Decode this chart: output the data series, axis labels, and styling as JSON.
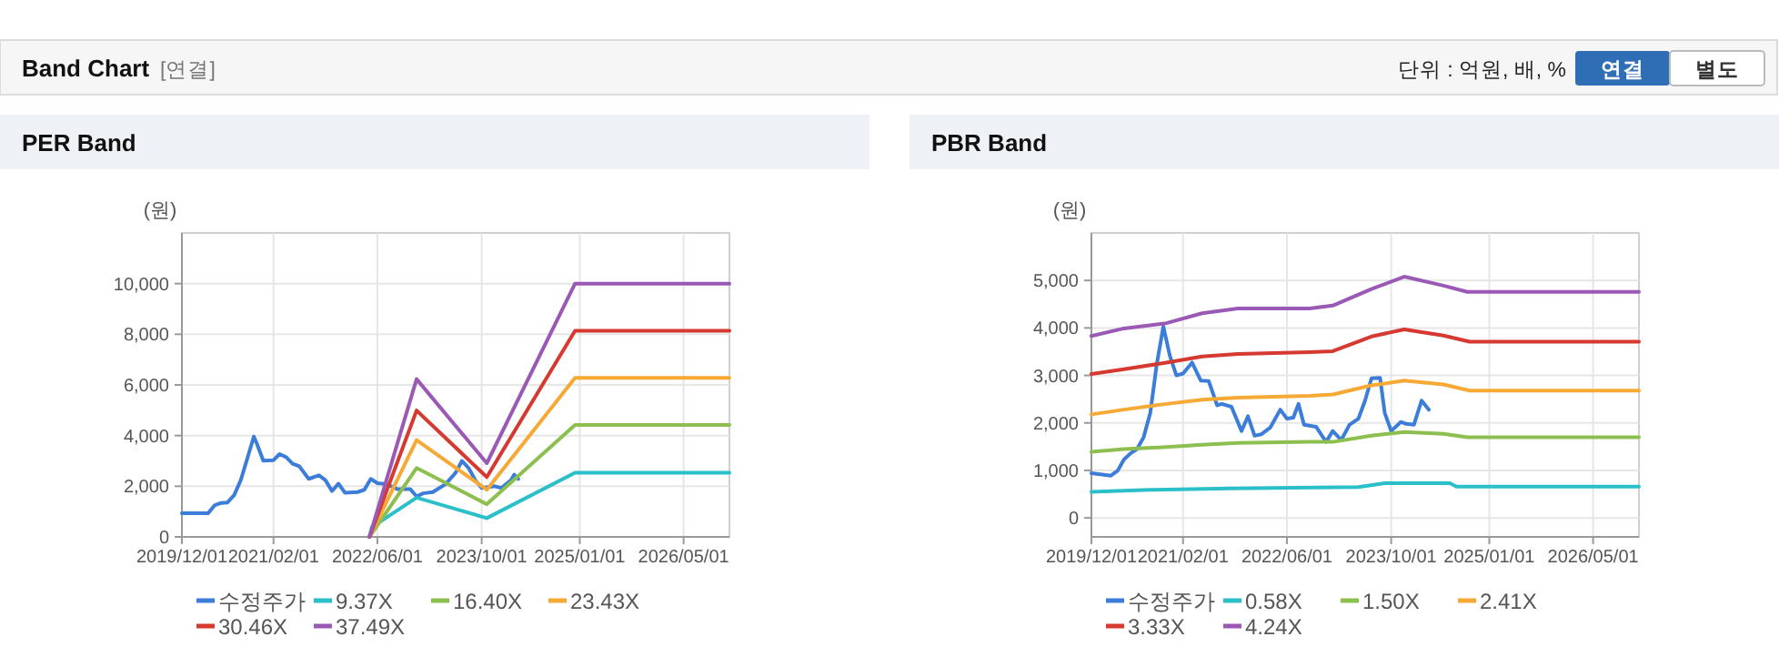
{
  "chart_data": [
    {
      "type": "other",
      "title": "Band Chart",
      "annotations": [
        "[연결]",
        "단위 : 억원, 배, %",
        "연결",
        "별도"
      ]
    },
    {
      "type": "line",
      "title": "PER Band",
      "ylabel": "(원)",
      "xlim": [
        "2019-12-01",
        "2026-12-01"
      ],
      "xticks": [
        {
          "value": "2019-12-01",
          "label": "2019/12/01"
        },
        {
          "value": "2021-02-01",
          "label": "2021/02/01"
        },
        {
          "value": "2022-06-01",
          "label": "2022/06/01"
        },
        {
          "value": "2023-10-01",
          "label": "2023/10/01"
        },
        {
          "value": "2025-01-01",
          "label": "2025/01/01"
        },
        {
          "value": "2026-05-01",
          "label": "2026/05/01"
        }
      ],
      "ylim": [
        0,
        12000
      ],
      "yticks": [
        0,
        {
          "value": 2000,
          "label": "2,000"
        },
        {
          "value": 4000,
          "label": "4,000"
        },
        {
          "value": 6000,
          "label": "6,000"
        },
        {
          "value": 8000,
          "label": "8,000"
        },
        {
          "value": 10000,
          "label": "10,000"
        }
      ],
      "grid": true,
      "legend": "bottom",
      "marker": "none",
      "line_style": "solid",
      "series": [
        {
          "name": "수정주가",
          "color": "#3b7dd8",
          "x": [
            "2019-12-01",
            "2020-04",
            "2020-05",
            "2020-06",
            "2020-07",
            "2020-08",
            "2020-09",
            "2020-10",
            "2020-11",
            "2020-11-15",
            "2020-12-15",
            "2021-02",
            "2021-03",
            "2021-04",
            "2021-05",
            "2021-06",
            "2021-07-15",
            "2021-09",
            "2021-10",
            "2021-11",
            "2021-12",
            "2022-01",
            "2022-03",
            "2022-04",
            "2022-05",
            "2022-06",
            "2022-07-15",
            "2022-09",
            "2022-11",
            "2022-12",
            "2023-01",
            "2023-02-15",
            "2023-04-15",
            "2023-06",
            "2023-07",
            "2023-08",
            "2023-09",
            "2023-10",
            "2023-12",
            "2024-01",
            "2024-02-15",
            "2024-03",
            "2024-03-20"
          ],
          "values": [
            930,
            930,
            1240,
            1340,
            1360,
            1650,
            2240,
            3080,
            3960,
            3680,
            3010,
            3030,
            3270,
            3150,
            2890,
            2790,
            2290,
            2430,
            2240,
            1810,
            2100,
            1740,
            1770,
            1860,
            2290,
            2120,
            2080,
            1890,
            1890,
            1600,
            1720,
            1770,
            2080,
            2530,
            3000,
            2720,
            2240,
            1930,
            2000,
            1930,
            2240,
            2460,
            2290
          ]
        },
        {
          "name": "9.37X",
          "color": "#2bbfc9",
          "x": [
            "2022-04-25",
            "2022-05-06",
            "2022-12-01",
            "2023-10-25",
            "2024-12-10",
            "2026-12-01"
          ],
          "values": [
            0,
            380,
            1550,
            740,
            2530,
            2530
          ]
        },
        {
          "name": "16.40X",
          "color": "#8cbf50",
          "x": [
            "2022-04-25",
            "2022-12-01",
            "2023-10-25",
            "2024-12-10",
            "2026-12-01"
          ],
          "values": [
            0,
            2720,
            1290,
            4420,
            4420
          ]
        },
        {
          "name": "23.43X",
          "color": "#f6a935",
          "x": [
            "2022-04-25",
            "2022-12-01",
            "2023-10-25",
            "2024-12-10",
            "2026-12-01"
          ],
          "values": [
            0,
            3820,
            1860,
            6280,
            6280
          ]
        },
        {
          "name": "30.46X",
          "color": "#d6392f",
          "x": [
            "2022-04-25",
            "2022-12-01",
            "2023-10-25",
            "2024-12-10",
            "2026-12-01"
          ],
          "values": [
            0,
            4990,
            2360,
            8140,
            8140
          ]
        },
        {
          "name": "37.49X",
          "color": "#9b59b6",
          "x": [
            "2022-04-25",
            "2022-12-01",
            "2023-10-25",
            "2024-12-10",
            "2026-12-01"
          ],
          "values": [
            0,
            6230,
            2910,
            10000,
            10000
          ]
        }
      ]
    },
    {
      "type": "line",
      "title": "PBR Band",
      "ylabel": "(원)",
      "xlim": [
        "2019-12-01",
        "2026-12-01"
      ],
      "xticks": [
        {
          "value": "2019-12-01",
          "label": "2019/12/01"
        },
        {
          "value": "2021-02-01",
          "label": "2021/02/01"
        },
        {
          "value": "2022-06-01",
          "label": "2022/06/01"
        },
        {
          "value": "2023-10-01",
          "label": "2023/10/01"
        },
        {
          "value": "2025-01-01",
          "label": "2025/01/01"
        },
        {
          "value": "2026-05-01",
          "label": "2026/05/01"
        }
      ],
      "ylim": [
        -400,
        6000
      ],
      "yticks": [
        0,
        {
          "value": 1000,
          "label": "1,000"
        },
        {
          "value": 2000,
          "label": "2,000"
        },
        {
          "value": 3000,
          "label": "3,000"
        },
        {
          "value": 4000,
          "label": "4,000"
        },
        {
          "value": 5000,
          "label": "5,000"
        }
      ],
      "grid": true,
      "legend": "bottom",
      "marker": "none",
      "line_style": "solid",
      "series": [
        {
          "name": "수정주가",
          "color": "#3b7dd8",
          "x": [
            "2019-12-01",
            "2020-03",
            "2020-04",
            "2020-05",
            "2020-06",
            "2020-07",
            "2020-08",
            "2020-09",
            "2020-10",
            "2020-11",
            "2020-12",
            "2021-01",
            "2021-02",
            "2021-03-15",
            "2021-04-25",
            "2021-06",
            "2021-07-10",
            "2021-08",
            "2021-09-15",
            "2021-11",
            "2021-12",
            "2022-01",
            "2022-02",
            "2022-03-15",
            "2022-05",
            "2022-06",
            "2022-07",
            "2022-07-25",
            "2022-08-20",
            "2022-10-15",
            "2022-12",
            "2023-01",
            "2023-02-10",
            "2023-03-20",
            "2023-05",
            "2023-06",
            "2023-07",
            "2023-08-10",
            "2023-09",
            "2023-10",
            "2023-11-15",
            "2023-12-10",
            "2024-01-15",
            "2024-02-20",
            "2024-03-25"
          ],
          "values": [
            940,
            890,
            990,
            1230,
            1360,
            1450,
            1700,
            2210,
            3230,
            4030,
            3420,
            3000,
            3040,
            3270,
            2890,
            2880,
            2370,
            2400,
            2340,
            1830,
            2140,
            1730,
            1760,
            1900,
            2280,
            2090,
            2110,
            2400,
            1960,
            1920,
            1600,
            1830,
            1640,
            1960,
            2090,
            2470,
            2940,
            2950,
            2210,
            1830,
            2020,
            1980,
            1960,
            2470,
            2280
          ]
        },
        {
          "name": "0.58X",
          "color": "#2bbfc9",
          "x": [
            "2019-12-01",
            "2020-09",
            "2021-09",
            "2023-05",
            "2023-09",
            "2024-07",
            "2024-08",
            "2026-12-01"
          ],
          "values": [
            550,
            590,
            620,
            650,
            730,
            730,
            660,
            660
          ]
        },
        {
          "name": "1.50X",
          "color": "#8cbf50",
          "x": [
            "2019-12-01",
            "2020-05",
            "2020-11-15",
            "2021-05",
            "2021-10-15",
            "2022-09-15",
            "2023-01",
            "2023-07",
            "2023-12",
            "2024-06",
            "2024-09-20",
            "2026-12-01"
          ],
          "values": [
            1390,
            1450,
            1490,
            1540,
            1580,
            1600,
            1600,
            1730,
            1810,
            1770,
            1700,
            1700
          ]
        },
        {
          "name": "2.41X",
          "color": "#f6a935",
          "x": [
            "2019-12-01",
            "2020-05",
            "2020-11-15",
            "2021-05",
            "2021-10-15",
            "2022-09-15",
            "2023-01",
            "2023-07",
            "2023-12",
            "2024-06",
            "2024-10",
            "2026-12-01"
          ],
          "values": [
            2180,
            2280,
            2400,
            2490,
            2530,
            2570,
            2600,
            2790,
            2890,
            2810,
            2680,
            2680
          ]
        },
        {
          "name": "3.33X",
          "color": "#d6392f",
          "x": [
            "2019-12-01",
            "2020-05",
            "2020-11-15",
            "2021-05",
            "2021-10-15",
            "2022-09-15",
            "2023-01",
            "2023-07",
            "2023-12",
            "2024-06",
            "2024-10",
            "2026-12-01"
          ],
          "values": [
            3030,
            3130,
            3270,
            3400,
            3450,
            3490,
            3510,
            3820,
            3970,
            3840,
            3710,
            3710
          ]
        },
        {
          "name": "4.24X",
          "color": "#9b59b6",
          "x": [
            "2019-12-01",
            "2020-05",
            "2020-11-15",
            "2021-05",
            "2021-10-15",
            "2022-09-15",
            "2023-01",
            "2023-07",
            "2023-12",
            "2024-06",
            "2024-09-20",
            "2026-12-01"
          ],
          "values": [
            3830,
            3990,
            4100,
            4310,
            4410,
            4410,
            4470,
            4820,
            5080,
            4890,
            4760,
            4760
          ]
        }
      ]
    }
  ]
}
